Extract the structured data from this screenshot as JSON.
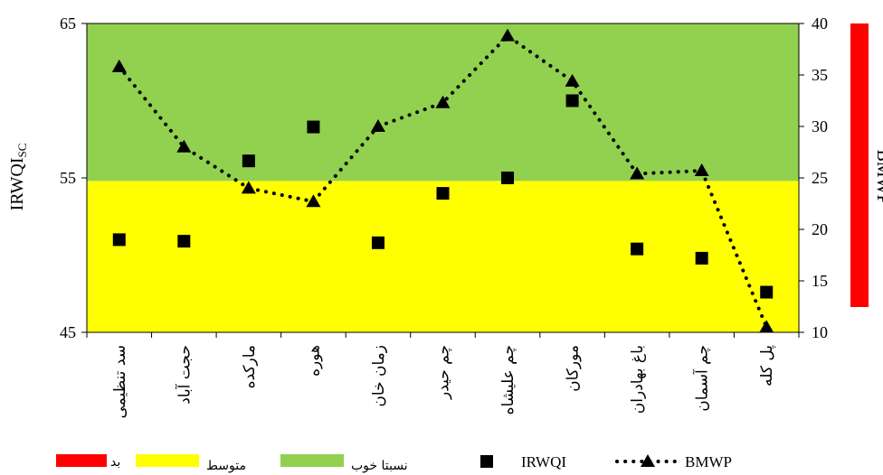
{
  "chart_data": {
    "type": "line",
    "ylabel_left": "IRWQI",
    "ylabel_left_sub": "SC",
    "ylabel_right": "BMWP",
    "ylim_left": [
      45,
      65
    ],
    "yticks_left": [
      "45",
      "55",
      "65"
    ],
    "ylim_right": [
      10,
      40
    ],
    "yticks_right": [
      "10",
      "15",
      "20",
      "25",
      "30",
      "35",
      "40"
    ],
    "categories": [
      "سد تنظیمی",
      "حجت آباد",
      "مارکده",
      "هوره",
      "زمان خان",
      "چم حیدر",
      "چم علیشاه",
      "مورکان",
      "باغ بهادران",
      "چم آسمان",
      "پل کله"
    ],
    "bands": [
      {
        "name": "نسبتا خوب",
        "from": 54.8,
        "to": 65,
        "color": "#92d050"
      },
      {
        "name": "متوسط",
        "from": 45,
        "to": 54.8,
        "color": "#ffff00"
      }
    ],
    "series": [
      {
        "name": "IRWQI",
        "axis": "left",
        "marker": "square",
        "line": "none",
        "color": "#000000",
        "values": [
          51.0,
          50.9,
          56.1,
          58.3,
          50.8,
          54.0,
          55.0,
          60.0,
          50.4,
          49.8,
          47.6
        ]
      },
      {
        "name": "BMWP",
        "axis": "right",
        "marker": "triangle",
        "line": "dotted",
        "color": "#000000",
        "values": [
          35.8,
          28.0,
          24.0,
          22.7,
          30.0,
          32.3,
          38.8,
          34.4,
          25.4,
          25.7,
          10.5
        ]
      }
    ],
    "side_band": {
      "label": "بد",
      "color": "#ff0000"
    },
    "legend_position": "bottom"
  }
}
